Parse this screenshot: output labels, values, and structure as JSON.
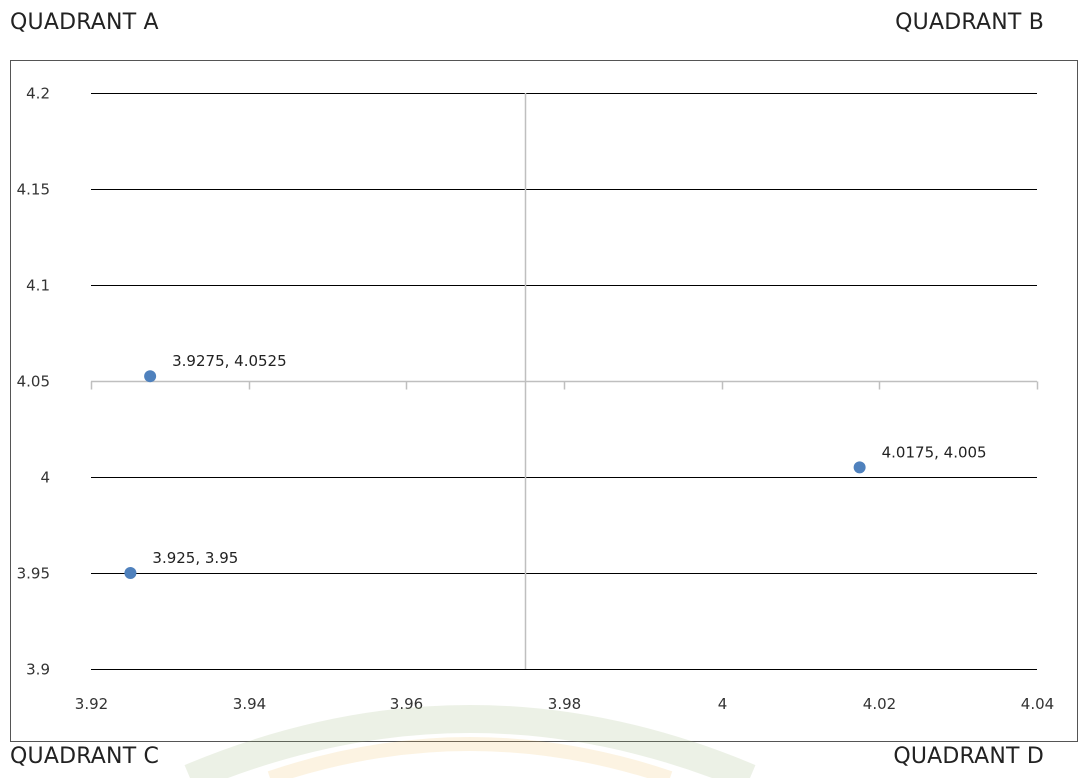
{
  "quadrants": {
    "a": "QUADRANT A",
    "b": "QUADRANT B",
    "c": "QUADRANT C",
    "d": "QUADRANT D"
  },
  "colors": {
    "point": "#4f81bd",
    "gridline": "#000000",
    "divider": "#bfbfbf",
    "frame": "#555555"
  },
  "chart_data": {
    "type": "scatter",
    "title": "",
    "xlabel": "",
    "ylabel": "",
    "xlim": [
      3.92,
      4.04
    ],
    "ylim": [
      3.9,
      4.2
    ],
    "x_ticks": [
      "3.92",
      "3.94",
      "3.96",
      "3.98",
      "4",
      "4.02",
      "4.04"
    ],
    "y_ticks": [
      "3.9",
      "3.95",
      "4",
      "4.05",
      "4.1",
      "4.15",
      "4.2"
    ],
    "x_tick_values": [
      3.92,
      3.94,
      3.96,
      3.98,
      4.0,
      4.02,
      4.04
    ],
    "y_tick_values": [
      3.9,
      3.95,
      4.0,
      4.05,
      4.1,
      4.15,
      4.2
    ],
    "x_axis_crosses_y": 4.05,
    "y_axis_crosses_x": 3.975,
    "grid": true,
    "points": [
      {
        "x": 3.9275,
        "y": 4.0525,
        "label": "3.9275, 4.0525"
      },
      {
        "x": 4.0175,
        "y": 4.005,
        "label": "4.0175, 4.005"
      },
      {
        "x": 3.925,
        "y": 3.95,
        "label": "3.925, 3.95"
      }
    ]
  }
}
